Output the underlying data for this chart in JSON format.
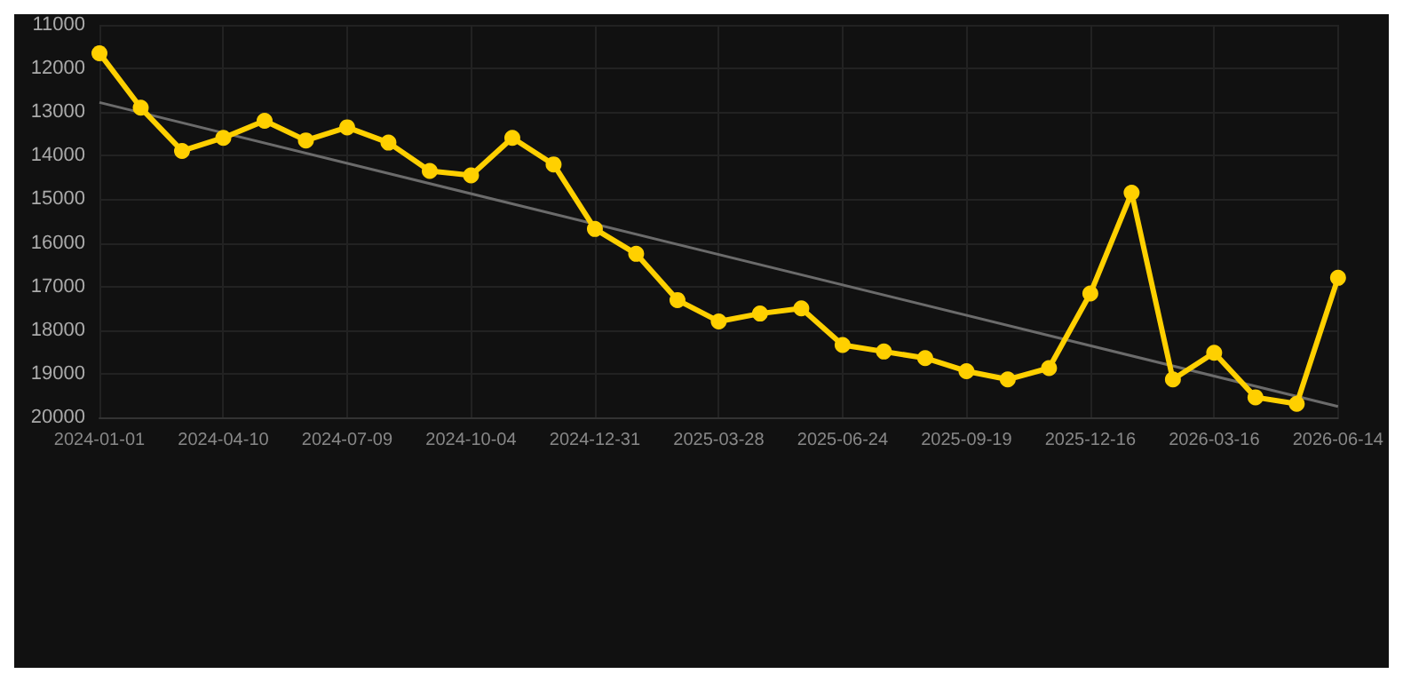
{
  "chart_data": {
    "type": "line",
    "categories": [
      "2024-01-01",
      null,
      null,
      "2024-04-10",
      null,
      null,
      "2024-07-09",
      null,
      null,
      "2024-10-04",
      null,
      null,
      "2024-12-31",
      null,
      null,
      "2025-03-28",
      null,
      null,
      "2025-06-24",
      null,
      null,
      "2025-09-19",
      null,
      null,
      "2025-12-16",
      null,
      null,
      "2026-03-16",
      null,
      null,
      "2026-06-14"
    ],
    "series": [
      {
        "color": "#ffd000",
        "marker": "circle",
        "values": [
          11650,
          12900,
          13890,
          13590,
          13200,
          13650,
          13350,
          13700,
          14350,
          14450,
          13590,
          14200,
          15680,
          16250,
          17310,
          17800,
          17620,
          17500,
          18340,
          18490,
          18640,
          18940,
          19130,
          18870,
          17160,
          14850,
          19130,
          18520,
          19540,
          19690,
          16800
        ]
      },
      {
        "color": "#6b6b6b",
        "marker": "none",
        "values": [
          12780,
          null,
          null,
          null,
          null,
          null,
          null,
          null,
          null,
          null,
          null,
          null,
          null,
          null,
          null,
          null,
          null,
          null,
          null,
          null,
          null,
          null,
          null,
          null,
          null,
          null,
          null,
          null,
          null,
          null,
          19750
        ]
      }
    ],
    "ylim": [
      20000,
      11000
    ],
    "yticks": [
      11000,
      12000,
      13000,
      14000,
      15000,
      16000,
      17000,
      18000,
      19000,
      20000
    ],
    "grid": true
  }
}
